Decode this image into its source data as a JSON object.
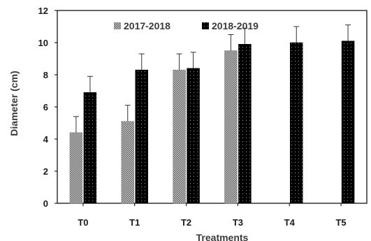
{
  "chart_data": {
    "type": "bar",
    "xlabel": "Treatments",
    "ylabel": "Diameter (cm)",
    "ylim": [
      0,
      12
    ],
    "yticks": [
      0,
      2,
      4,
      6,
      8,
      10,
      12
    ],
    "categories": [
      "T0",
      "T1",
      "T2",
      "T3",
      "T4",
      "T5"
    ],
    "series": [
      {
        "name": "2017-2018",
        "values": [
          4.4,
          5.1,
          8.3,
          9.5,
          null,
          null
        ],
        "errors": [
          1.0,
          1.0,
          1.0,
          1.0,
          null,
          null
        ],
        "pattern": "crosshatch"
      },
      {
        "name": "2018-2019",
        "values": [
          6.9,
          8.3,
          8.4,
          9.9,
          10.0,
          10.1
        ],
        "errors": [
          1.0,
          1.0,
          1.0,
          1.0,
          1.0,
          1.0
        ],
        "pattern": "dotted-black"
      }
    ],
    "legend_position": "top",
    "grid": false,
    "error_bars": true
  }
}
